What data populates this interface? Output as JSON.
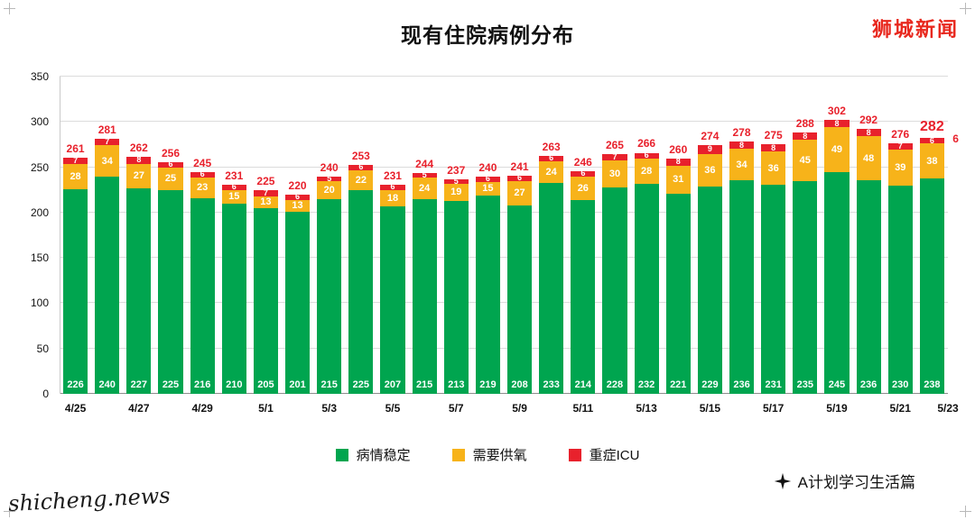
{
  "header": {
    "title": "现有住院病例分布",
    "brand": "狮城新闻"
  },
  "watermarks": {
    "bottom_left": "shicheng.news",
    "bottom_right": "A计划学习生活篇"
  },
  "chart_data": {
    "type": "bar",
    "stacked": true,
    "title": "现有住院病例分布",
    "xlabel": "",
    "ylabel": "",
    "ylim": [
      0,
      350
    ],
    "yticks": [
      0,
      50,
      100,
      150,
      200,
      250,
      300,
      350
    ],
    "grid": true,
    "legend_position": "bottom",
    "xtick_labels": [
      "4/25",
      "4/27",
      "4/29",
      "5/1",
      "5/3",
      "5/5",
      "5/7",
      "5/9",
      "5/11",
      "5/13",
      "5/15",
      "5/17",
      "5/19",
      "5/21",
      "5/23"
    ],
    "series": [
      {
        "key": "stable",
        "name": "病情稳定",
        "color": "#00a54f",
        "values": [
          226,
          240,
          227,
          225,
          216,
          210,
          205,
          201,
          215,
          225,
          207,
          215,
          213,
          219,
          208,
          233,
          214,
          228,
          232,
          221,
          229,
          236,
          231,
          235,
          245,
          236,
          230,
          238
        ]
      },
      {
        "key": "oxygen",
        "name": "需要供氧",
        "color": "#f7b31a",
        "values": [
          28,
          34,
          27,
          25,
          23,
          15,
          13,
          13,
          20,
          22,
          18,
          24,
          19,
          15,
          27,
          24,
          26,
          30,
          28,
          31,
          36,
          34,
          36,
          45,
          49,
          48,
          39,
          38
        ]
      },
      {
        "key": "icu",
        "name": "重症ICU",
        "color": "#e8212c",
        "values": [
          7,
          7,
          8,
          6,
          6,
          6,
          7,
          6,
          5,
          6,
          6,
          5,
          5,
          6,
          6,
          6,
          6,
          7,
          6,
          8,
          9,
          8,
          8,
          8,
          8,
          8,
          7,
          6
        ]
      }
    ],
    "totals": [
      261,
      281,
      262,
      256,
      245,
      231,
      225,
      220,
      240,
      253,
      231,
      244,
      237,
      240,
      241,
      263,
      246,
      265,
      266,
      260,
      274,
      278,
      275,
      288,
      302,
      292,
      276,
      282
    ],
    "last_bar_icu_callout": "6"
  }
}
